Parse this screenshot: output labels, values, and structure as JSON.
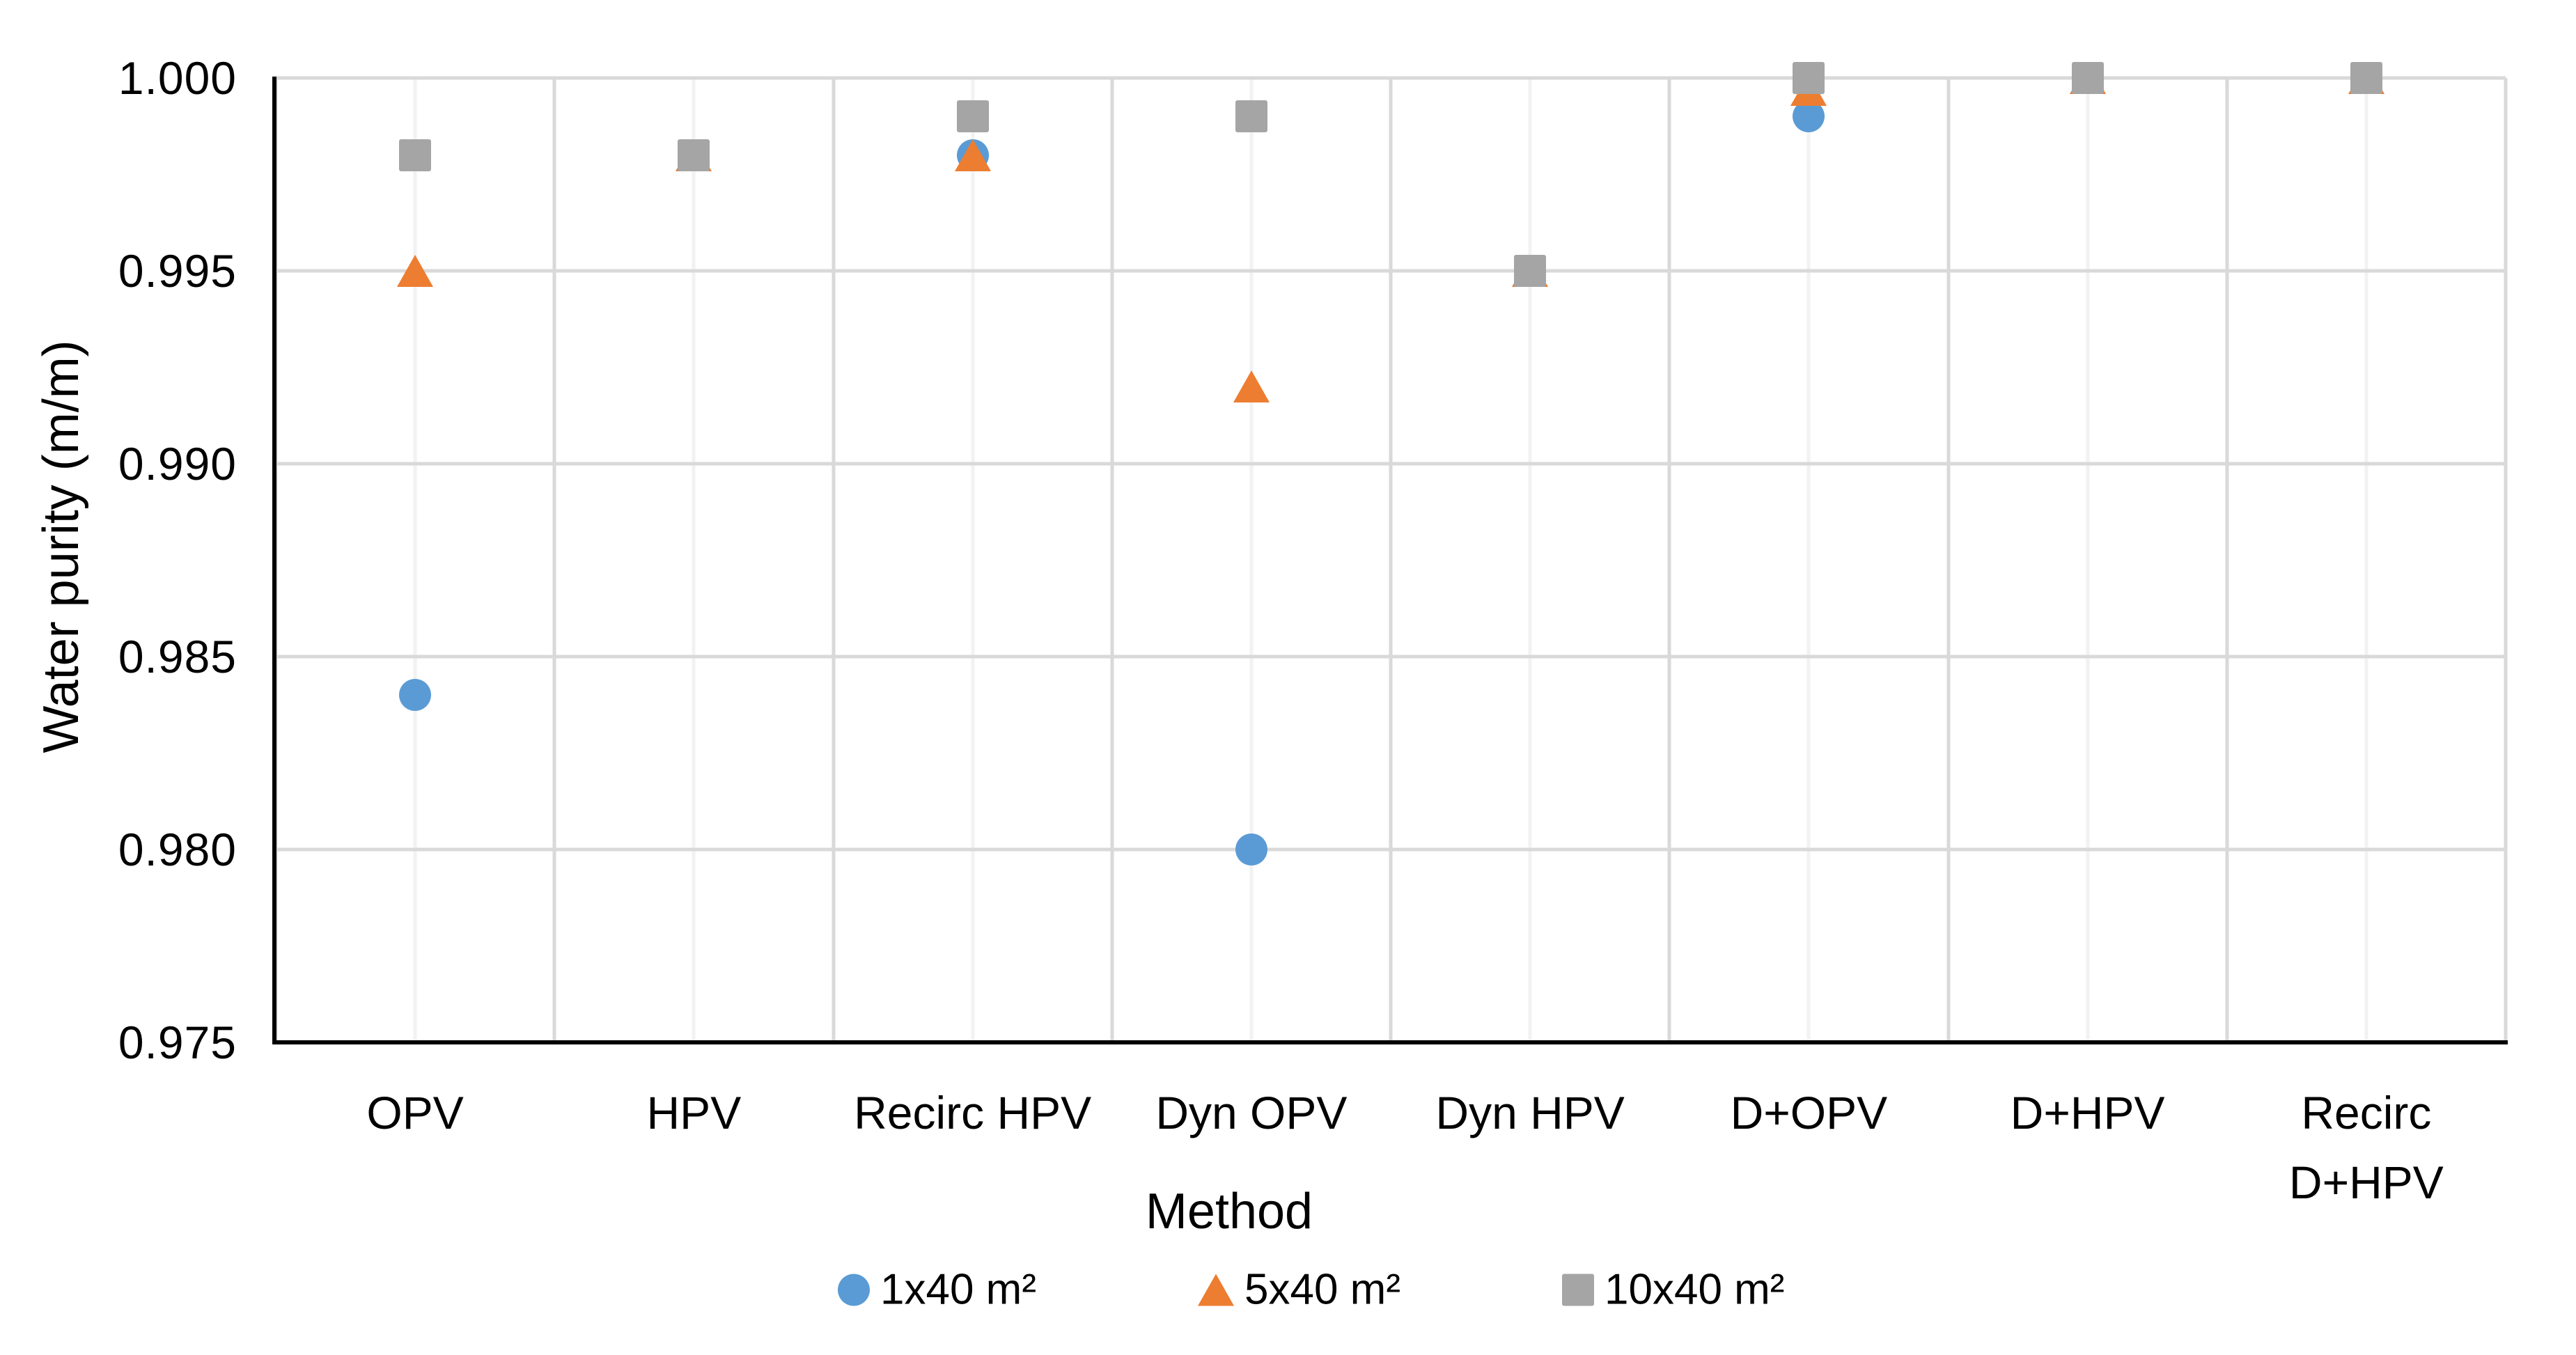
{
  "chart": {
    "y_axis_title": "Water purity (m/m)",
    "x_axis_title": "Method",
    "y_ticks": [
      "1.000",
      "0.995",
      "0.990",
      "0.985",
      "0.980",
      "0.975"
    ]
  },
  "chart_data": {
    "type": "scatter",
    "title": "",
    "xlabel": "Method",
    "ylabel": "Water purity (m/m)",
    "ylim": [
      0.975,
      1.0
    ],
    "ytick_step": 0.005,
    "grid": true,
    "legend_position": "bottom",
    "categories": [
      "OPV",
      "HPV",
      "Recirc HPV",
      "Dyn OPV",
      "Dyn HPV",
      "D+OPV",
      "D+HPV",
      "Recirc D+HPV"
    ],
    "x_tick_lines": [
      [
        "OPV"
      ],
      [
        "HPV"
      ],
      [
        "Recirc HPV"
      ],
      [
        "Dyn OPV"
      ],
      [
        "Dyn HPV"
      ],
      [
        "D+OPV"
      ],
      [
        "D+HPV"
      ],
      [
        "Recirc",
        "D+HPV"
      ]
    ],
    "series": [
      {
        "name": "1x40 m²",
        "marker": "circle",
        "color": "#5B9BD5",
        "values": [
          0.984,
          0.998,
          0.998,
          0.98,
          0.995,
          0.999,
          1.0,
          1.0
        ]
      },
      {
        "name": "5x40 m²",
        "marker": "triangle",
        "color": "#ED7D31",
        "values": [
          0.995,
          0.998,
          0.998,
          0.992,
          0.995,
          0.9997,
          1.0,
          1.0
        ]
      },
      {
        "name": "10x40 m²",
        "marker": "square",
        "color": "#A5A5A5",
        "values": [
          0.998,
          0.998,
          0.999,
          0.999,
          0.995,
          1.0,
          1.0,
          1.0
        ]
      }
    ],
    "z_order": "series drawn in listed order, later series on top (overlapping markers occlude earlier ones)",
    "colors": {
      "gridline_major": "#D9D9D9",
      "gridline_minor": "#F2F2F2",
      "axis_line": "#000000",
      "text": "#000000"
    }
  }
}
